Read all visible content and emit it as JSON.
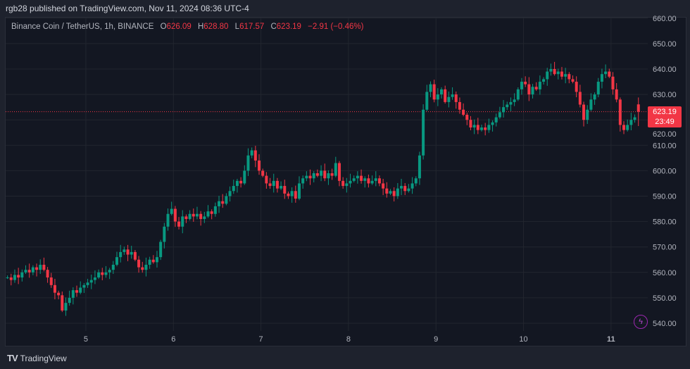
{
  "header": {
    "publisher": "rgb28 published on TradingView.com, Nov 11, 2024 08:36 UTC-4"
  },
  "legend": {
    "symbol": "Binance Coin / TetherUS, 1h, BINANCE",
    "o_label": "O",
    "o": "626.09",
    "h_label": "H",
    "h": "628.80",
    "l_label": "L",
    "l": "617.57",
    "c_label": "C",
    "c": "623.19",
    "change": "−2.91 (−0.46%)"
  },
  "price_tag": {
    "price": "623.19",
    "countdown": "23:49"
  },
  "footer": {
    "brand": "TradingView",
    "logo": "17"
  },
  "colors": {
    "up": "#089981",
    "down": "#f23645",
    "bg": "#131722",
    "grid": "#22262f"
  },
  "chart_data": {
    "type": "candlestick",
    "title": "Binance Coin / TetherUS, 1h, BINANCE",
    "ylim": [
      530,
      662
    ],
    "y_ticks": [
      "660.00",
      "650.00",
      "640.00",
      "630.00",
      "620.00",
      "610.00",
      "600.00",
      "590.00",
      "580.00",
      "570.00",
      "560.00",
      "550.00",
      "540.00"
    ],
    "x_ticks": [
      {
        "label": "5",
        "hour_index": 22
      },
      {
        "label": "6",
        "hour_index": 46
      },
      {
        "label": "7",
        "hour_index": 70
      },
      {
        "label": "8",
        "hour_index": 94
      },
      {
        "label": "9",
        "hour_index": 118
      },
      {
        "label": "10",
        "hour_index": 142
      },
      {
        "label": "11",
        "hour_index": 166
      }
    ],
    "first_open": 558,
    "closes": [
      558,
      557,
      559,
      558,
      560,
      561,
      560,
      562,
      561,
      563,
      561,
      558,
      555,
      552,
      551,
      545,
      548,
      550,
      553,
      552,
      554,
      555,
      556,
      557,
      558,
      560,
      559,
      560,
      561,
      563,
      566,
      568,
      569,
      567,
      568,
      565,
      562,
      561,
      563,
      565,
      564,
      566,
      572,
      578,
      583,
      585,
      580,
      578,
      582,
      581,
      583,
      582,
      583,
      581,
      582,
      584,
      583,
      586,
      588,
      587,
      590,
      592,
      594,
      596,
      595,
      600,
      606,
      608,
      604,
      600,
      598,
      595,
      594,
      596,
      593,
      594,
      591,
      590,
      592,
      589,
      595,
      597,
      598,
      597,
      599,
      598,
      600,
      597,
      599,
      598,
      603,
      596,
      594,
      595,
      596,
      597,
      598,
      596,
      597,
      595,
      596,
      597,
      595,
      593,
      591,
      592,
      590,
      593,
      594,
      592,
      593,
      595,
      597,
      606,
      624,
      631,
      634,
      628,
      630,
      632,
      627,
      629,
      630,
      627,
      624,
      622,
      620,
      617,
      618,
      616,
      617,
      616,
      618,
      619,
      621,
      623,
      625,
      626,
      627,
      628,
      632,
      635,
      634,
      630,
      633,
      632,
      635,
      636,
      639,
      640,
      638,
      639,
      637,
      638,
      636,
      635,
      631,
      626,
      620,
      624,
      628,
      630,
      635,
      638,
      639,
      637,
      632,
      628,
      618,
      616,
      618,
      620,
      621,
      626.09
    ],
    "last_candle": {
      "open": 626.09,
      "high": 628.8,
      "low": 617.57,
      "close": 623.19
    },
    "current_price": 623.19
  }
}
